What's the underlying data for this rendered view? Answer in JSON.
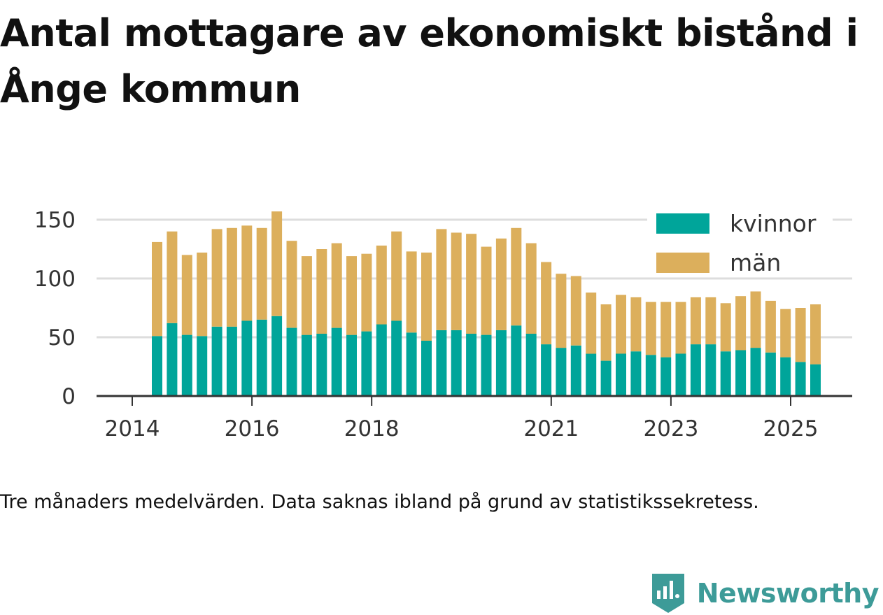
{
  "title": "Antal mottagare av ekonomiskt bistånd i Ånge kommun",
  "note": "Tre månaders medelvärden. Data saknas ibland på grund av statistikssekretess.",
  "brand": {
    "name": "Newsworthy",
    "icon": "newsworthy-logo-icon",
    "color": "#3d9b98"
  },
  "colors": {
    "kvinnor": "#00a59a",
    "man": "#dcaf5c",
    "grid": "#dddddd",
    "axis": "#333333"
  },
  "chart_data": {
    "type": "bar",
    "stacked": true,
    "x_start": "2014-05",
    "x_step_months": 3,
    "categories": [
      "2014-05",
      "2014-08",
      "2014-11",
      "2015-02",
      "2015-05",
      "2015-08",
      "2015-11",
      "2016-02",
      "2016-05",
      "2016-08",
      "2016-11",
      "2017-02",
      "2017-05",
      "2017-08",
      "2017-11",
      "2018-02",
      "2018-05",
      "2018-08",
      "2018-11",
      "2019-02",
      "2019-05",
      "2019-08",
      "2019-11",
      "2020-02",
      "2020-05",
      "2020-08",
      "2020-11",
      "2021-02",
      "2021-05",
      "2021-08",
      "2021-11",
      "2022-02",
      "2022-05",
      "2022-08",
      "2022-11",
      "2023-02",
      "2023-05",
      "2023-08",
      "2023-11",
      "2024-02",
      "2024-05",
      "2024-08",
      "2024-11",
      "2025-02",
      "2025-05"
    ],
    "series": [
      {
        "name": "kvinnor",
        "color": "#00a59a",
        "values": [
          51,
          62,
          52,
          51,
          59,
          59,
          64,
          65,
          68,
          58,
          52,
          53,
          58,
          52,
          55,
          61,
          64,
          54,
          47,
          56,
          56,
          53,
          52,
          56,
          60,
          53,
          44,
          41,
          43,
          36,
          30,
          36,
          38,
          35,
          33,
          36,
          44,
          44,
          38,
          39,
          41,
          37,
          33,
          29,
          27
        ]
      },
      {
        "name": "män",
        "color": "#dcaf5c",
        "values": [
          80,
          78,
          68,
          71,
          83,
          84,
          81,
          78,
          89,
          74,
          67,
          72,
          72,
          67,
          66,
          67,
          76,
          69,
          75,
          86,
          83,
          85,
          75,
          78,
          83,
          77,
          70,
          63,
          59,
          52,
          48,
          50,
          46,
          45,
          47,
          44,
          40,
          40,
          41,
          46,
          48,
          44,
          41,
          46,
          51
        ]
      }
    ],
    "x_ticks": [
      "2014",
      "2016",
      "2018",
      "2021",
      "2023",
      "2025"
    ],
    "y_ticks": [
      "0",
      "50",
      "100",
      "150"
    ],
    "ylim": [
      0,
      160
    ],
    "grid": true,
    "legend_position": "top-right"
  }
}
